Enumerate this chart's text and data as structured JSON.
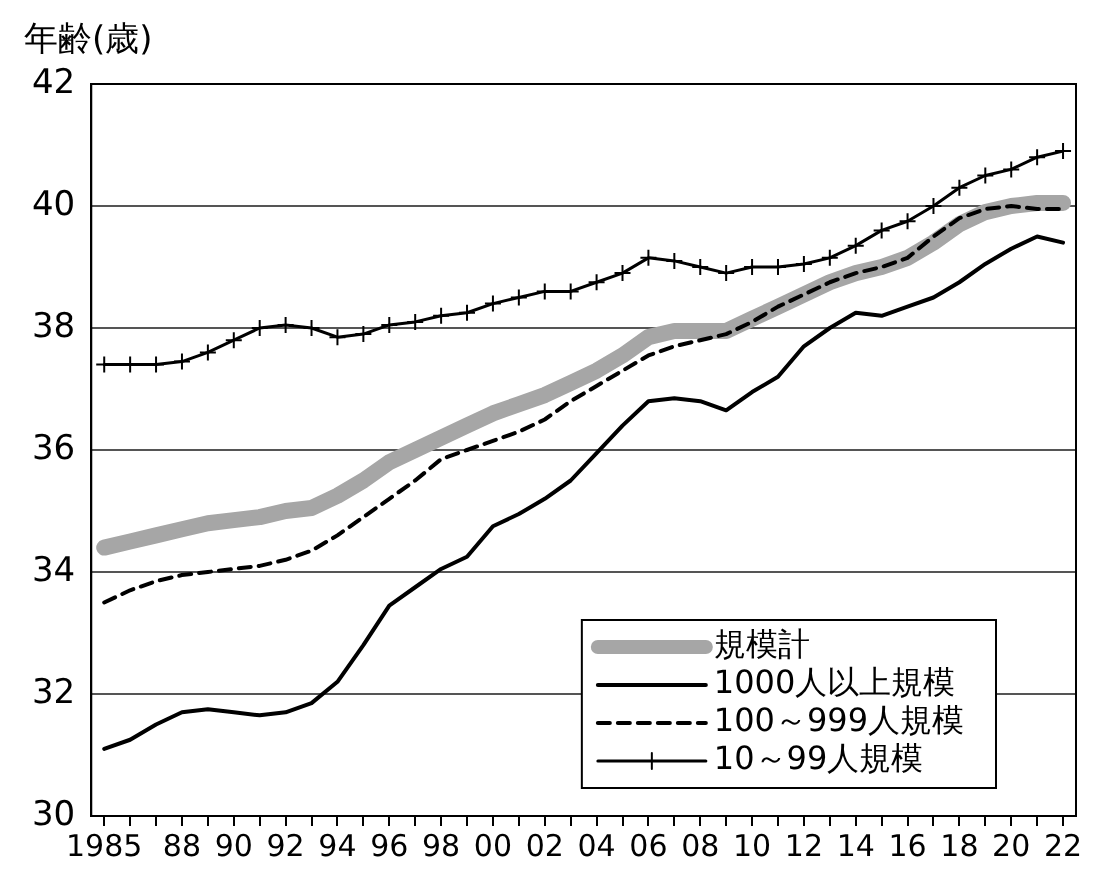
{
  "chart_data": {
    "type": "line",
    "ylabel": "年齢(歳)",
    "categories": [
      "1985",
      null,
      null,
      "88",
      null,
      "90",
      null,
      "92",
      null,
      "94",
      null,
      "96",
      null,
      "98",
      null,
      "00",
      null,
      "02",
      null,
      "04",
      null,
      "06",
      null,
      "08",
      null,
      "10",
      null,
      "12",
      null,
      "14",
      null,
      "16",
      null,
      "18",
      null,
      "20",
      null,
      "22"
    ],
    "series": [
      {
        "name": "規模計",
        "color": "#a6a6a6",
        "values": [
          34.4,
          34.5,
          34.6,
          34.7,
          34.8,
          34.85,
          34.9,
          35.0,
          35.05,
          35.25,
          35.5,
          35.8,
          36.0,
          36.2,
          36.4,
          36.6,
          36.75,
          36.9,
          37.1,
          37.3,
          37.55,
          37.85,
          37.95,
          37.95,
          37.95,
          38.15,
          38.35,
          38.55,
          38.75,
          38.9,
          39.0,
          39.15,
          39.4,
          39.7,
          39.9,
          40.0,
          40.05,
          40.05
        ]
      },
      {
        "name": "1000人以上規模",
        "color": "#000000",
        "values": [
          31.1,
          31.25,
          31.5,
          31.7,
          31.75,
          31.7,
          31.65,
          31.7,
          31.85,
          32.2,
          32.8,
          33.45,
          33.75,
          34.05,
          34.25,
          34.75,
          34.95,
          35.2,
          35.5,
          35.95,
          36.4,
          36.8,
          36.85,
          36.8,
          36.65,
          36.95,
          37.2,
          37.7,
          38.0,
          38.25,
          38.2,
          38.35,
          38.5,
          38.75,
          39.05,
          39.3,
          39.5,
          39.4
        ]
      },
      {
        "name": "100～999人規模",
        "color": "#000000",
        "line_style": "dashed",
        "values": [
          33.5,
          33.7,
          33.85,
          33.95,
          34.0,
          34.05,
          34.1,
          34.2,
          34.35,
          34.6,
          34.9,
          35.2,
          35.5,
          35.85,
          36.0,
          36.15,
          36.3,
          36.5,
          36.8,
          37.05,
          37.3,
          37.55,
          37.7,
          37.8,
          37.9,
          38.1,
          38.35,
          38.55,
          38.75,
          38.9,
          39.0,
          39.15,
          39.5,
          39.8,
          39.95,
          40.0,
          39.95,
          39.95
        ]
      },
      {
        "name": "10～99人規模",
        "color": "#000000",
        "marker": "cross",
        "values": [
          37.4,
          37.4,
          37.4,
          37.45,
          37.6,
          37.8,
          38.0,
          38.05,
          38.0,
          37.85,
          37.9,
          38.05,
          38.1,
          38.2,
          38.25,
          38.4,
          38.5,
          38.6,
          38.6,
          38.75,
          38.9,
          39.15,
          39.1,
          39.0,
          38.9,
          39.0,
          39.0,
          39.05,
          39.15,
          39.35,
          39.6,
          39.75,
          40.0,
          40.3,
          40.5,
          40.6,
          40.8,
          40.9
        ]
      }
    ],
    "ylim": [
      30,
      42
    ],
    "yticks": [
      30,
      32,
      34,
      36,
      38,
      40,
      42
    ],
    "grid": "y",
    "legend": "bottom right",
    "marker": "none",
    "line_style": "solid"
  }
}
